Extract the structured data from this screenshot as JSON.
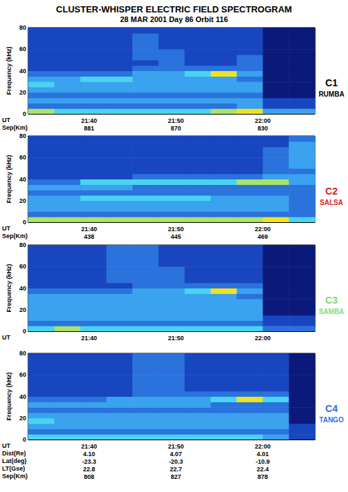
{
  "chart_data": {
    "type": "spectrogram",
    "title": "CLUSTER-WHISPER ELECTRIC FIELD SPECTROGRAM",
    "subtitle": "28 MAR 2001 Day 86 Orbit 116",
    "y_label": "Frequency (kHz)",
    "x_label": "UT",
    "xlim": [
      1293,
      1326
    ],
    "xticks": [
      {
        "value": 1300,
        "label": "21:40"
      },
      {
        "value": 1310,
        "label": "21:50"
      },
      {
        "value": 1320,
        "label": "22:00"
      }
    ],
    "ylim": [
      0,
      80
    ],
    "yticks": [
      0,
      20,
      40,
      60,
      80
    ],
    "zlim": [
      0,
      7
    ],
    "time_edges": [
      1293,
      1296,
      1299,
      1302,
      1305,
      1308,
      1311,
      1314,
      1317,
      1320,
      1323,
      1326
    ],
    "frequency_edges": [
      0,
      5,
      10,
      15,
      20,
      25,
      30,
      35,
      40,
      45,
      50,
      55,
      60,
      65,
      70,
      75,
      80
    ],
    "panels": [
      {
        "name": "C1",
        "spacecraft": "RUMBA",
        "color": "#000000",
        "rows": [
          {
            "label": "Sep(Km)",
            "values": [
              "881",
              "870",
              "830"
            ]
          }
        ],
        "cells": [
          [
            5,
            4,
            4,
            4,
            4,
            4,
            4,
            5,
            6,
            3,
            3
          ],
          [
            2,
            2,
            2,
            2,
            2,
            2,
            2,
            2,
            3,
            1,
            1
          ],
          [
            3,
            3,
            3,
            3,
            3,
            3,
            3,
            3,
            3,
            1,
            1
          ],
          [
            2,
            2,
            2,
            2,
            2,
            2,
            2,
            2,
            2,
            0,
            0
          ],
          [
            3,
            3,
            3,
            3,
            3,
            3,
            3,
            3,
            3,
            0,
            0
          ],
          [
            4,
            3,
            3,
            3,
            3,
            3,
            3,
            3,
            3,
            0,
            0
          ],
          [
            3,
            3,
            4,
            4,
            3,
            3,
            3,
            3,
            2,
            0,
            0
          ],
          [
            2,
            2,
            2,
            2,
            3,
            3,
            4,
            6,
            3,
            0,
            0
          ],
          [
            1,
            1,
            1,
            1,
            2,
            2,
            2,
            2,
            2,
            0,
            0
          ],
          [
            1,
            1,
            1,
            1,
            1,
            2,
            1,
            1,
            2,
            0,
            0
          ],
          [
            1,
            1,
            1,
            1,
            2,
            2,
            1,
            1,
            2,
            0,
            0
          ],
          [
            1,
            1,
            1,
            1,
            2,
            2,
            1,
            1,
            1,
            0,
            0
          ],
          [
            1,
            1,
            1,
            1,
            2,
            1,
            1,
            1,
            1,
            0,
            0
          ],
          [
            1,
            1,
            1,
            1,
            2,
            1,
            1,
            1,
            1,
            0,
            0
          ],
          [
            1,
            1,
            1,
            1,
            2,
            1,
            1,
            1,
            1,
            0,
            0
          ],
          [
            1,
            1,
            1,
            1,
            1,
            1,
            1,
            1,
            1,
            0,
            0
          ]
        ]
      },
      {
        "name": "C2",
        "spacecraft": "SALSA",
        "color": "#e0201c",
        "rows": [
          {
            "label": "Sep(Km)",
            "values": [
              "438",
              "445",
              "469"
            ]
          }
        ],
        "cells": [
          [
            5,
            5,
            5,
            5,
            5,
            5,
            5,
            5,
            5,
            6,
            4
          ],
          [
            2,
            2,
            2,
            2,
            2,
            2,
            2,
            2,
            2,
            2,
            2
          ],
          [
            3,
            3,
            3,
            3,
            3,
            3,
            3,
            3,
            3,
            3,
            2
          ],
          [
            3,
            3,
            3,
            3,
            3,
            3,
            3,
            3,
            3,
            3,
            2
          ],
          [
            3,
            3,
            4,
            4,
            4,
            4,
            4,
            3,
            3,
            3,
            2
          ],
          [
            2,
            2,
            2,
            2,
            2,
            2,
            2,
            2,
            2,
            2,
            2
          ],
          [
            3,
            3,
            3,
            3,
            2,
            2,
            2,
            2,
            2,
            2,
            2
          ],
          [
            2,
            2,
            4,
            4,
            4,
            4,
            4,
            4,
            5,
            5,
            3
          ],
          [
            1,
            1,
            1,
            1,
            2,
            2,
            2,
            2,
            2,
            3,
            3
          ],
          [
            1,
            1,
            1,
            1,
            1,
            1,
            1,
            1,
            1,
            2,
            2
          ],
          [
            1,
            1,
            1,
            1,
            1,
            1,
            1,
            1,
            1,
            2,
            3
          ],
          [
            1,
            1,
            1,
            1,
            1,
            1,
            1,
            1,
            1,
            2,
            3
          ],
          [
            1,
            1,
            1,
            1,
            1,
            1,
            1,
            1,
            1,
            2,
            3
          ],
          [
            1,
            1,
            1,
            1,
            1,
            1,
            1,
            1,
            1,
            2,
            3
          ],
          [
            1,
            1,
            1,
            1,
            1,
            1,
            1,
            1,
            1,
            1,
            3
          ],
          [
            1,
            1,
            1,
            1,
            1,
            1,
            1,
            1,
            1,
            1,
            2
          ]
        ]
      },
      {
        "name": "C3",
        "spacecraft": "SAMBA",
        "color": "#7edc7e",
        "rows": [],
        "cells": [
          [
            4,
            5,
            4,
            4,
            4,
            4,
            4,
            4,
            4,
            2,
            2
          ],
          [
            2,
            2,
            2,
            2,
            2,
            2,
            2,
            2,
            2,
            1,
            1
          ],
          [
            3,
            3,
            3,
            3,
            3,
            3,
            3,
            3,
            3,
            1,
            1
          ],
          [
            3,
            3,
            3,
            3,
            3,
            3,
            3,
            3,
            3,
            0,
            0
          ],
          [
            3,
            3,
            3,
            3,
            3,
            3,
            3,
            3,
            3,
            0,
            0
          ],
          [
            3,
            3,
            3,
            3,
            3,
            3,
            3,
            3,
            3,
            0,
            0
          ],
          [
            3,
            3,
            3,
            3,
            3,
            3,
            3,
            3,
            2,
            0,
            0
          ],
          [
            2,
            2,
            2,
            2,
            3,
            3,
            4,
            6,
            3,
            0,
            0
          ],
          [
            1,
            1,
            1,
            1,
            2,
            2,
            2,
            2,
            2,
            0,
            0
          ],
          [
            1,
            1,
            1,
            2,
            2,
            2,
            1,
            1,
            1,
            0,
            0
          ],
          [
            1,
            1,
            1,
            2,
            2,
            2,
            1,
            1,
            1,
            0,
            0
          ],
          [
            1,
            1,
            1,
            2,
            2,
            2,
            1,
            1,
            1,
            0,
            0
          ],
          [
            1,
            1,
            1,
            2,
            2,
            1,
            1,
            1,
            1,
            0,
            0
          ],
          [
            1,
            1,
            1,
            2,
            2,
            1,
            1,
            1,
            1,
            0,
            0
          ],
          [
            1,
            1,
            1,
            2,
            2,
            1,
            1,
            1,
            1,
            0,
            0
          ],
          [
            1,
            1,
            1,
            2,
            2,
            1,
            1,
            1,
            1,
            0,
            0
          ]
        ]
      },
      {
        "name": "C4",
        "spacecraft": "TANGO",
        "color": "#2f6fe0",
        "rows": [
          {
            "label": "Dist(Re)",
            "values": [
              "4.10",
              "4.07",
              "4.01"
            ]
          },
          {
            "label": "Lat(deg)",
            "values": [
              "-23.3",
              "-20.3",
              "-10.9"
            ]
          },
          {
            "label": "LT(Gse)",
            "values": [
              "22.8",
              "22.7",
              "22.4"
            ]
          },
          {
            "label": "Sep(Km)",
            "values": [
              "808",
              "827",
              "878"
            ]
          }
        ],
        "cells": [
          [
            4,
            4,
            4,
            4,
            4,
            4,
            4,
            4,
            4,
            3,
            1
          ],
          [
            2,
            2,
            2,
            2,
            2,
            2,
            2,
            2,
            2,
            2,
            1
          ],
          [
            3,
            3,
            3,
            3,
            3,
            3,
            3,
            3,
            3,
            3,
            1
          ],
          [
            4,
            3,
            3,
            3,
            3,
            3,
            3,
            3,
            3,
            3,
            0
          ],
          [
            3,
            3,
            3,
            3,
            3,
            3,
            3,
            3,
            3,
            3,
            0
          ],
          [
            2,
            2,
            2,
            2,
            2,
            2,
            2,
            2,
            2,
            2,
            0
          ],
          [
            3,
            3,
            3,
            3,
            3,
            3,
            3,
            2,
            2,
            2,
            0
          ],
          [
            2,
            2,
            2,
            3,
            3,
            3,
            3,
            4,
            6,
            4,
            0
          ],
          [
            1,
            1,
            1,
            1,
            2,
            2,
            2,
            2,
            2,
            2,
            0
          ],
          [
            1,
            1,
            1,
            1,
            2,
            2,
            1,
            1,
            1,
            1,
            0
          ],
          [
            1,
            1,
            1,
            1,
            2,
            2,
            1,
            1,
            1,
            1,
            0
          ],
          [
            1,
            1,
            1,
            1,
            2,
            2,
            1,
            1,
            1,
            1,
            0
          ],
          [
            1,
            1,
            1,
            1,
            2,
            2,
            1,
            1,
            1,
            1,
            0
          ],
          [
            1,
            1,
            1,
            1,
            2,
            2,
            1,
            1,
            1,
            1,
            0
          ],
          [
            1,
            1,
            1,
            1,
            2,
            2,
            1,
            1,
            1,
            1,
            0
          ],
          [
            1,
            1,
            1,
            1,
            2,
            2,
            1,
            1,
            1,
            1,
            0
          ]
        ]
      }
    ]
  }
}
